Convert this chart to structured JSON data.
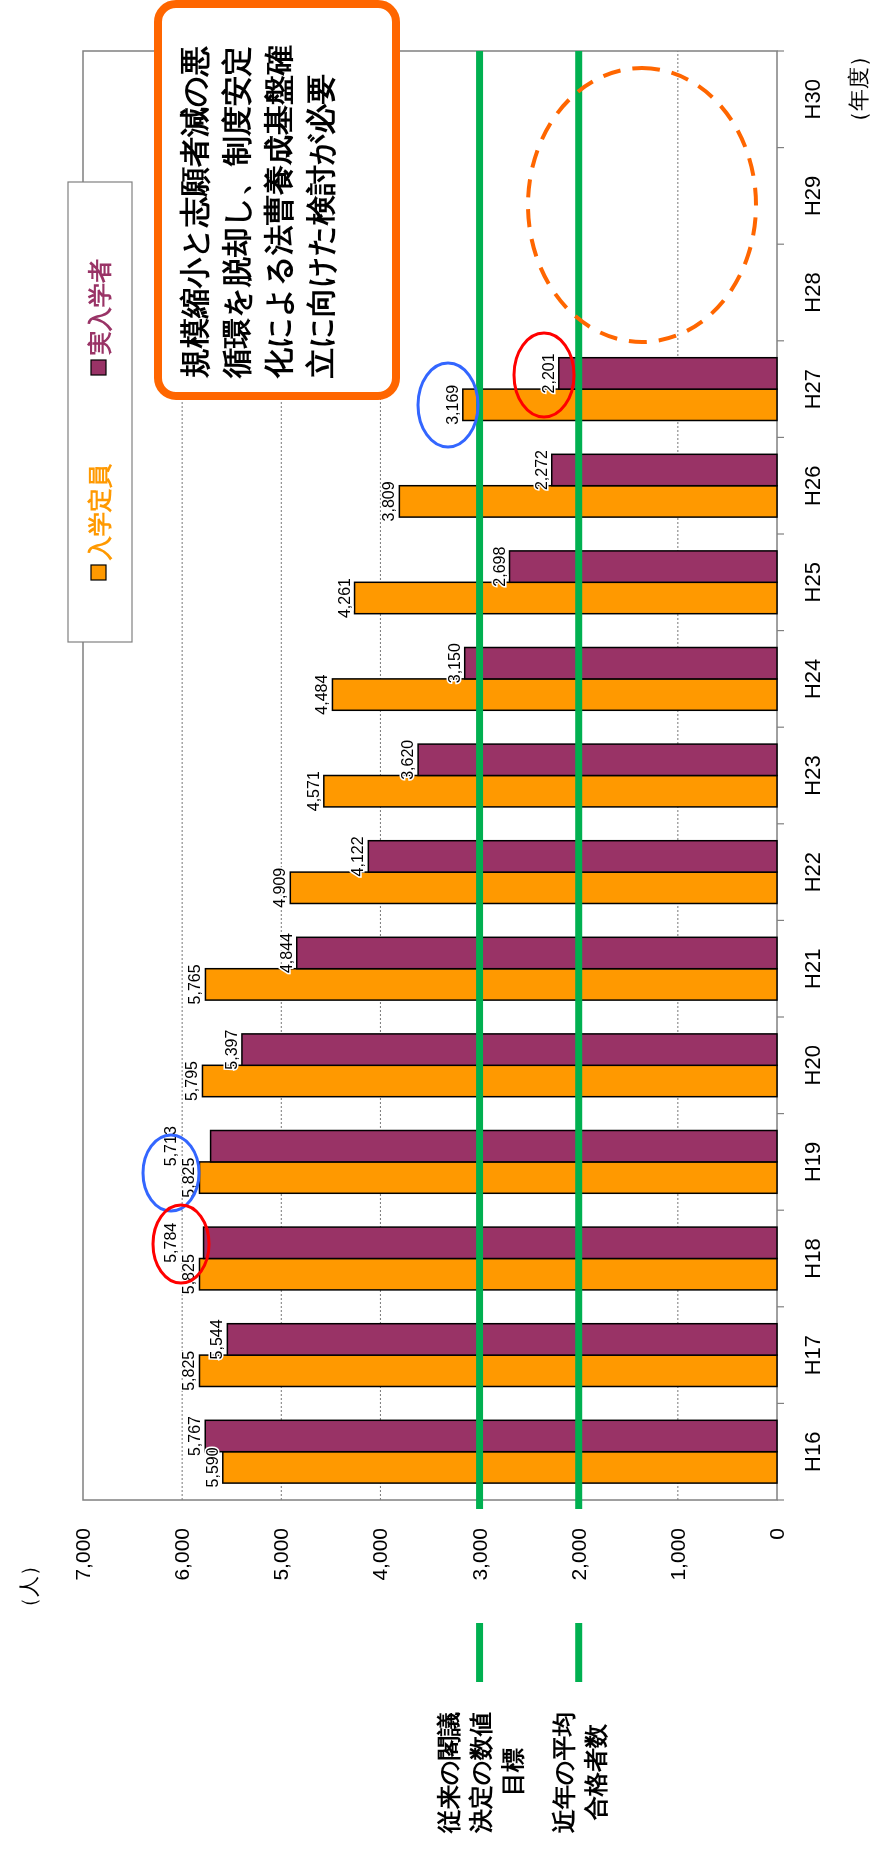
{
  "chart_data": {
    "type": "bar",
    "orientation": "horizontal",
    "ylabel": "（年度）",
    "categories": [
      "H30",
      "H29",
      "H28",
      "H27",
      "H26",
      "H25",
      "H24",
      "H23",
      "H22",
      "H21",
      "H20",
      "H19",
      "H18",
      "H17",
      "H16"
    ],
    "series": [
      {
        "name": "入学定員",
        "color": "#ff9900",
        "values": [
          null,
          null,
          null,
          3169,
          3809,
          4261,
          4484,
          4571,
          4909,
          5765,
          5795,
          5825,
          5825,
          5825,
          5590
        ],
        "value_labels": [
          null,
          null,
          null,
          "3,169",
          "3,809",
          "4,261",
          "4,484",
          "4,571",
          "4,909",
          "5,765",
          "5,795",
          "5,825",
          "5,825",
          "5,825",
          "5,590"
        ]
      },
      {
        "name": "実入学者",
        "color": "#993366",
        "values": [
          null,
          null,
          null,
          2201,
          2272,
          2698,
          3150,
          3620,
          4122,
          4844,
          5397,
          5713,
          5784,
          5544,
          5767
        ],
        "value_labels": [
          null,
          null,
          null,
          "2,201",
          "2,272",
          "2,698",
          "3,150",
          "3,620",
          "4,122",
          "4,844",
          "5,397",
          "5,713",
          "5,784",
          "5,544",
          "5,767"
        ]
      }
    ],
    "xlim": [
      7000,
      0
    ],
    "xticks": [
      {
        "value": 7000,
        "label": "7,000"
      },
      {
        "value": 6000,
        "label": "6,000"
      },
      {
        "value": 5000,
        "label": "5,000"
      },
      {
        "value": 4000,
        "label": "4,000"
      },
      {
        "value": 3000,
        "label": "3,000"
      },
      {
        "value": 2000,
        "label": "2,000"
      },
      {
        "value": 1000,
        "label": "1,000"
      },
      0
    ],
    "grid": "x",
    "legend": "left",
    "ref_lines": [
      {
        "axis": "x",
        "value": 3000,
        "label": "従来の閣議決定の数値目標",
        "color": "#00b050"
      },
      {
        "axis": "x",
        "value": 2000,
        "label": "近年の平均合格者数",
        "color": "#00b050"
      }
    ],
    "annotations": [
      "（人）",
      "規模縮小と志願者減の悪循環を脱却し、制度安定化による法曹養成基盤確立に向けた検討が必要"
    ]
  }
}
